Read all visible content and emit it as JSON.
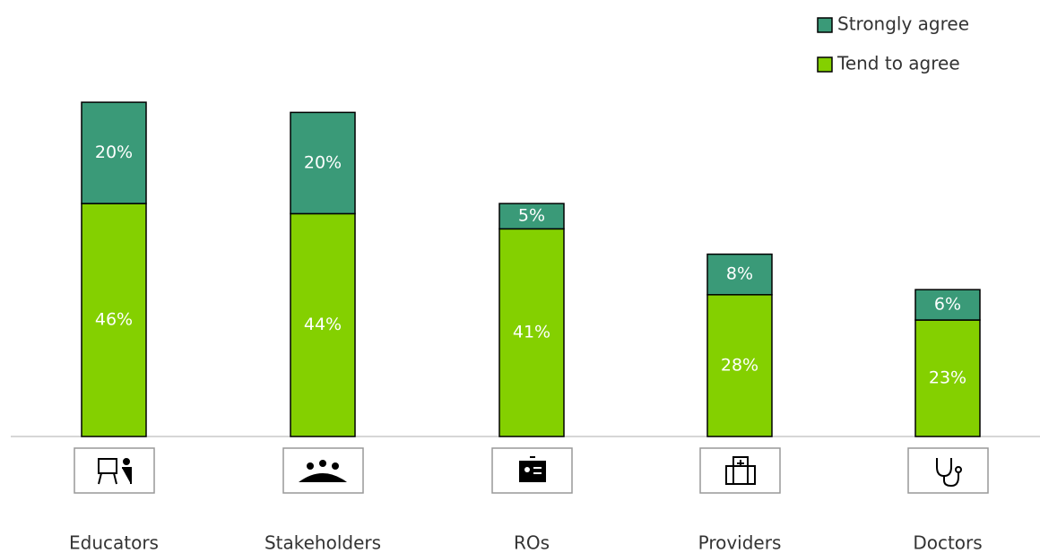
{
  "chart_data": {
    "type": "stacked_bar",
    "categories": [
      "Educators",
      "Stakeholders",
      "ROs",
      "Providers",
      "Doctors"
    ],
    "series": [
      {
        "name": "Tend to agree",
        "color": "#84d000",
        "values": [
          46,
          44,
          41,
          28,
          23
        ],
        "value_labels": [
          "46%",
          "44%",
          "41%",
          "28%",
          "23%"
        ]
      },
      {
        "name": "Strongly agree",
        "color": "#3a9a78",
        "values": [
          20,
          20,
          5,
          8,
          6
        ],
        "value_labels": [
          "20%",
          "20%",
          "5%",
          "8%",
          "6%"
        ]
      }
    ],
    "legend": "top-right"
  }
}
